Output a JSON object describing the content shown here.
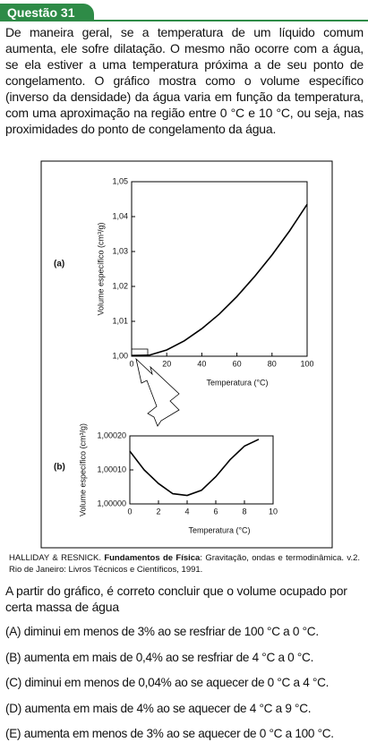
{
  "header": {
    "title": "Questão 31"
  },
  "text": "De maneira geral, se a temperatura de um líquido comum aumenta, ele sofre dilatação. O mesmo não ocorre com a água, se ela estiver a uma temperatura próxima a de seu ponto de congelamento. O gráfico mostra como o volume específico (inverso da densidade) da água varia em função da temperatura, com uma aproximação na região entre 0 °C e 10 °C, ou seja, nas proximidades do ponto de congelamento da água.",
  "chart_data": [
    {
      "type": "line",
      "label": "(a)",
      "xlabel": "Temperatura (°C)",
      "ylabel": "Volume específico (cm³/g)",
      "color": "#000000",
      "x": [
        0,
        10,
        20,
        30,
        40,
        50,
        60,
        70,
        80,
        90,
        100
      ],
      "values": [
        1.0002,
        1.0003,
        1.0018,
        1.0044,
        1.0079,
        1.0121,
        1.0171,
        1.0228,
        1.029,
        1.0359,
        1.0435
      ],
      "xlim": [
        0,
        100
      ],
      "xticks": [
        0,
        20,
        40,
        60,
        80,
        100
      ],
      "ylim": [
        1.0,
        1.05
      ],
      "yticks": [
        {
          "value": 1.0,
          "label": "1,00"
        },
        {
          "value": 1.01,
          "label": "1,01"
        },
        {
          "value": 1.02,
          "label": "1,02"
        },
        {
          "value": 1.03,
          "label": "1,03"
        },
        {
          "value": 1.04,
          "label": "1,04"
        },
        {
          "value": 1.05,
          "label": "1,05"
        }
      ]
    },
    {
      "type": "line",
      "label": "(b)",
      "xlabel": "Temperatura (°C)",
      "ylabel": "Volume específico (cm³/g)",
      "color": "#000000",
      "x": [
        0,
        1,
        2,
        3,
        4,
        5,
        6,
        7,
        8,
        9
      ],
      "values": [
        1.000155,
        1.0001,
        1.00006,
        1.00003,
        1.000025,
        1.00004,
        1.00008,
        1.00013,
        1.00017,
        1.00019
      ],
      "xlim": [
        0,
        10
      ],
      "xticks": [
        0,
        2,
        4,
        6,
        8,
        10
      ],
      "ylim": [
        1.0,
        1.0002
      ],
      "yticks": [
        {
          "value": 1.0,
          "label": "1,00000"
        },
        {
          "value": 1.0001,
          "label": "1,00010"
        },
        {
          "value": 1.0002,
          "label": "1,00020"
        }
      ]
    }
  ],
  "citation": {
    "author": "HALLIDAY & RESNICK.",
    "title": "Fundamentos de Física",
    "rest": ": Gravitação, ondas e termodinâmica. v.2. Rio de Janeiro: Livros Técnicos e Científicos, 1991."
  },
  "question": "A partir do gráfico, é correto concluir que o volume ocupado por certa massa de água",
  "options": [
    "(A) diminui em menos de 3% ao se resfriar de 100 °C a 0 °C.",
    "(B) aumenta em mais de 0,4% ao se resfriar de 4 °C a 0 °C.",
    "(C) diminui em menos de 0,04% ao se aquecer de 0 °C a 4 °C.",
    "(D) aumenta em mais de 4% ao se aquecer de 4 °C a 9 °C.",
    "(E) aumenta em menos de 3% ao se aquecer de 0 °C a 100 °C."
  ]
}
